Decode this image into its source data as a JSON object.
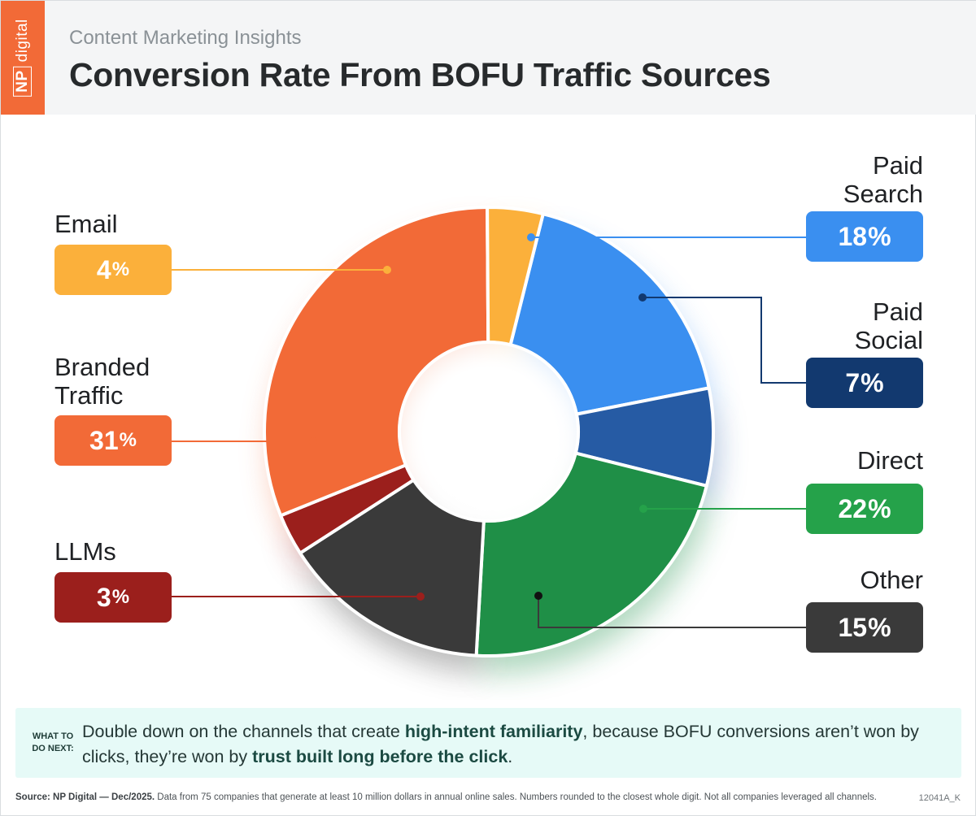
{
  "header": {
    "brand_np": "NP",
    "brand_name": "digital",
    "subtitle": "Content Marketing Insights",
    "title": "Conversion Rate From BOFU Traffic Sources"
  },
  "chart_data": {
    "type": "pie",
    "title": "Conversion Rate From BOFU Traffic Sources",
    "subtitle": "Content Marketing Insights",
    "donut": true,
    "unit": "%",
    "categories": [
      "Paid Search",
      "Paid Social",
      "Direct",
      "Other",
      "LLMs",
      "Branded Traffic",
      "Email"
    ],
    "values": [
      18,
      7,
      22,
      15,
      3,
      31,
      4
    ],
    "labels": [
      {
        "name_lines": [
          "Paid",
          "Search"
        ],
        "value": "18",
        "side": "right",
        "color": "#3a8ff0"
      },
      {
        "name_lines": [
          "Paid",
          "Social"
        ],
        "value": "7",
        "side": "right",
        "color": "#12396f"
      },
      {
        "name_lines": [
          "Direct"
        ],
        "value": "22",
        "side": "right",
        "color": "#25a24a"
      },
      {
        "name_lines": [
          "Other"
        ],
        "value": "15",
        "side": "right",
        "color": "#3a3a3a"
      },
      {
        "name_lines": [
          "LLMs"
        ],
        "value": "3",
        "side": "left",
        "color": "#9b1f1c"
      },
      {
        "name_lines": [
          "Branded",
          "Traffic"
        ],
        "value": "31",
        "side": "left",
        "color": "#f26a37"
      },
      {
        "name_lines": [
          "Email"
        ],
        "value": "4",
        "side": "left",
        "color": "#fbb03b"
      }
    ],
    "colors": [
      "#3a8ff0",
      "#265ba4",
      "#1f8f47",
      "#3a3a3a",
      "#9b1f1c",
      "#f26a37",
      "#fbb03b"
    ],
    "legend": "none",
    "grid": false
  },
  "callout": {
    "tag_line1": "WHAT TO",
    "tag_line2": "DO NEXT:",
    "text_1": "Double down on the channels that create ",
    "bold_1": "high-intent familiarity",
    "text_2": ", because BOFU conversions aren’t won by clicks, they’re won by ",
    "bold_2": "trust built long before the click",
    "text_3": "."
  },
  "footer": {
    "source_bold": "Source: NP Digital — Dec/2025.",
    "source_text": "  Data from 75 companies that generate at least 10 million dollars in annual online sales. Numbers rounded to the closest whole digit. Not all companies leveraged all channels.",
    "code": "12041A_K"
  }
}
